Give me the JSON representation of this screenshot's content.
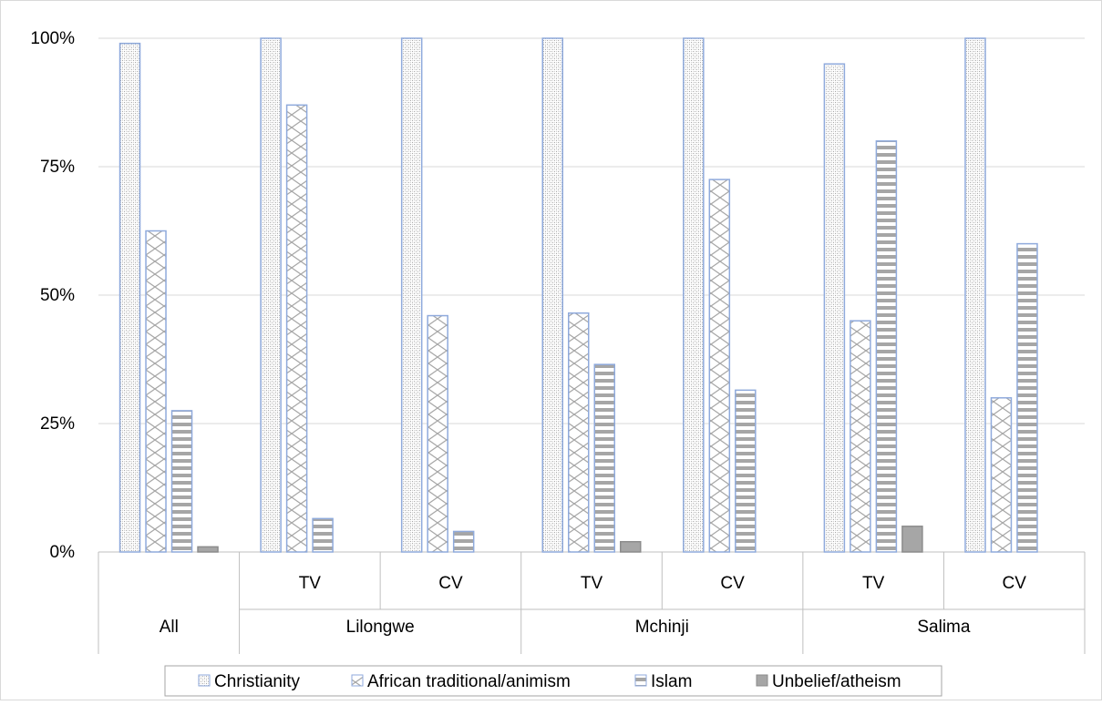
{
  "chart_data": {
    "type": "bar",
    "title": "",
    "xlabel": "",
    "ylabel": "",
    "ylim": [
      0,
      100
    ],
    "y_ticks": [
      "0%",
      "25%",
      "50%",
      "75%",
      "100%"
    ],
    "grid": true,
    "legend_position": "bottom",
    "categories": [
      {
        "group": "All",
        "sub": ""
      },
      {
        "group": "Lilongwe",
        "sub": "TV"
      },
      {
        "group": "Lilongwe",
        "sub": "CV"
      },
      {
        "group": "Mchinji",
        "sub": "TV"
      },
      {
        "group": "Mchinji",
        "sub": "CV"
      },
      {
        "group": "Salima",
        "sub": "TV"
      },
      {
        "group": "Salima",
        "sub": "CV"
      }
    ],
    "groups": [
      "All",
      "Lilongwe",
      "Mchinji",
      "Salima"
    ],
    "series": [
      {
        "name": "Christianity",
        "values": [
          99,
          100,
          100,
          100,
          100,
          95,
          100
        ]
      },
      {
        "name": "African traditional/animism",
        "values": [
          62.5,
          87,
          46,
          46.5,
          72.5,
          45,
          30
        ]
      },
      {
        "name": "Islam",
        "values": [
          27.5,
          6.5,
          4,
          36.5,
          31.5,
          80,
          60
        ]
      },
      {
        "name": "Unbelief/atheism",
        "values": [
          1,
          0,
          0,
          2,
          0,
          5,
          0
        ]
      }
    ],
    "colors": {
      "outline": "#8faadc",
      "pattern": "#a6a6a6",
      "solid": "#a6a6a6",
      "grid": "#d9d9d9",
      "axis": "#bfbfbf"
    }
  }
}
